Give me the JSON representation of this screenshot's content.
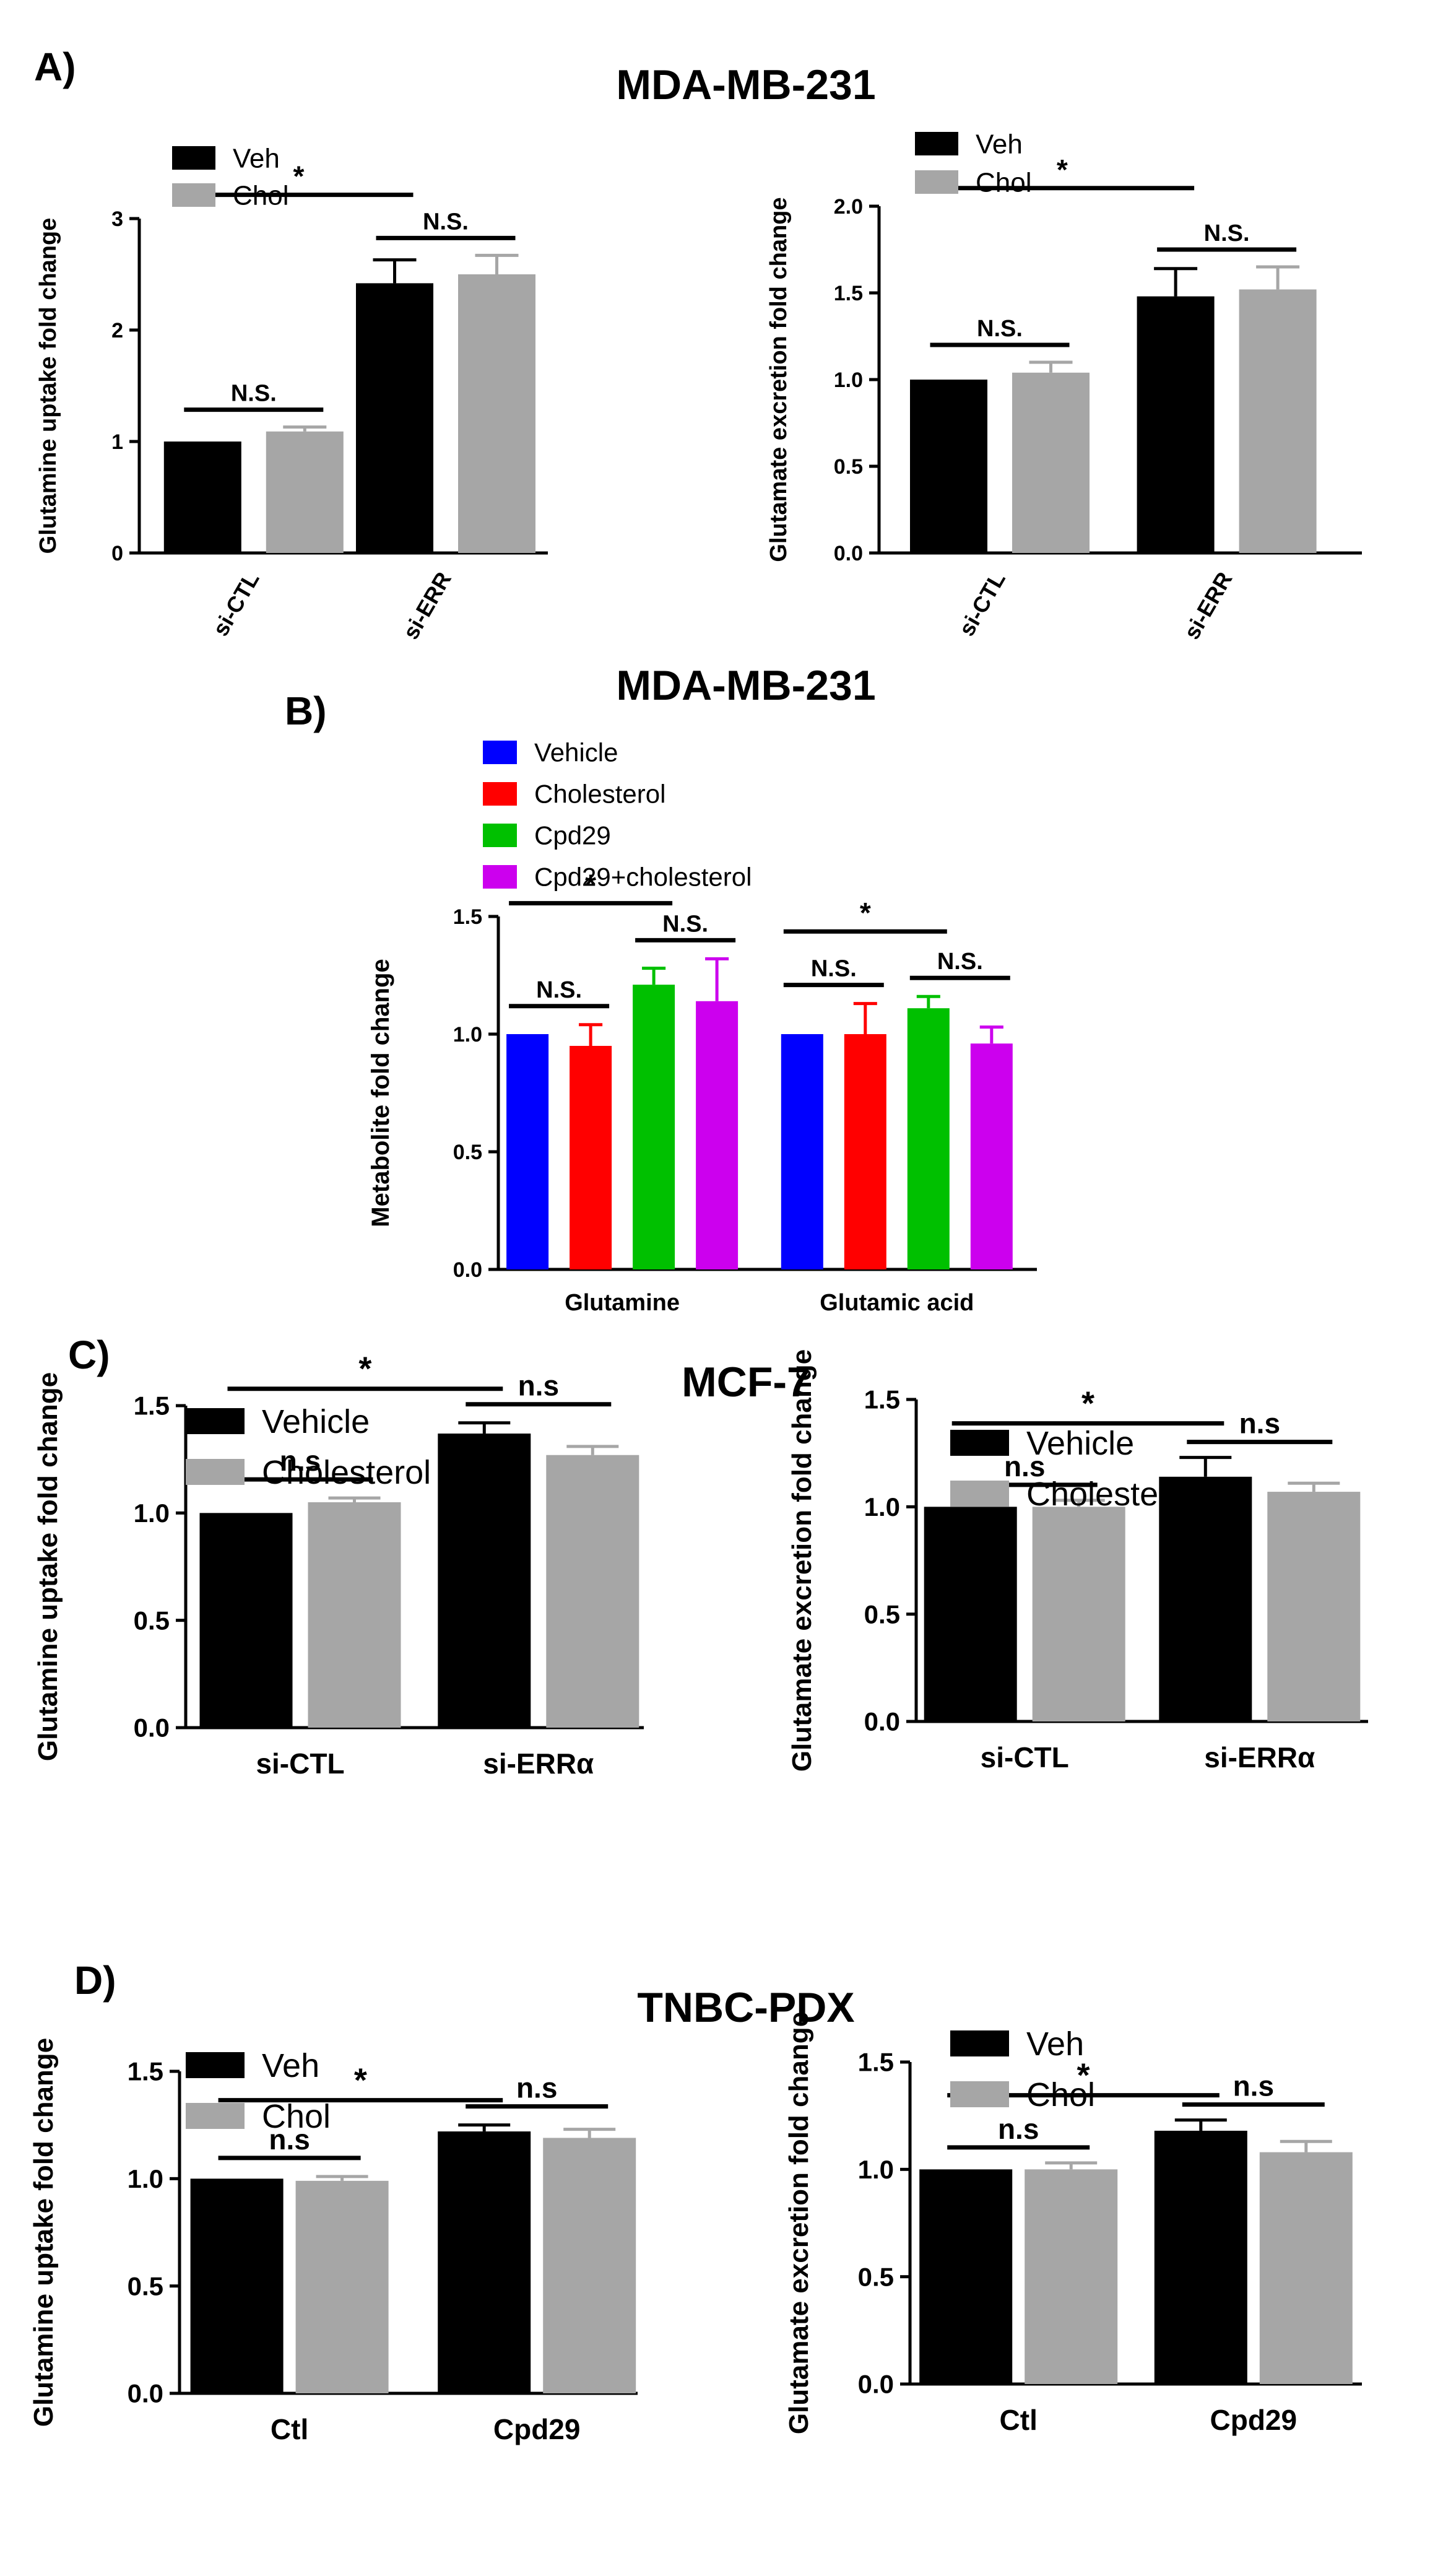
{
  "panel_labels": [
    "A)",
    "B)",
    "C)",
    "D)"
  ],
  "section_titles": [
    "MDA-MB-231",
    "MDA-MB-231",
    "MCF-7",
    "TNBC-PDX"
  ],
  "colors": {
    "black": "#000000",
    "gray": "#a6a6a6",
    "blue": "#0000ff",
    "red": "#ff0000",
    "green": "#00c000",
    "magenta": "#cc00ee"
  },
  "chart_data": [
    {
      "id": "A1",
      "type": "bar",
      "ylabel": "Glutamine uptake fold change",
      "ylim": [
        0,
        3
      ],
      "yticks": [
        "0",
        "1",
        "2",
        "3"
      ],
      "categories": [
        "si-CTL",
        "si-ERR"
      ],
      "rotated_categories": true,
      "series": [
        {
          "name": "Veh",
          "color": "#000000",
          "values": [
            1.0,
            2.42
          ],
          "errors": [
            0,
            0.21
          ]
        },
        {
          "name": "Chol",
          "color": "#a6a6a6",
          "values": [
            1.09,
            2.5
          ],
          "errors": [
            0.04,
            0.17
          ]
        }
      ],
      "annotations": [
        {
          "text": "N.S.",
          "between": [
            [
              0,
              0
            ],
            [
              0,
              1
            ]
          ]
        },
        {
          "text": "N.S.",
          "between": [
            [
              1,
              0
            ],
            [
              1,
              1
            ]
          ]
        },
        {
          "text": "*",
          "between": [
            [
              0,
              0
            ],
            [
              1,
              0
            ]
          ]
        }
      ]
    },
    {
      "id": "A2",
      "type": "bar",
      "ylabel": "Glutamate excretion fold change",
      "ylim": [
        0,
        2.0
      ],
      "yticks": [
        "0.0",
        "0.5",
        "1.0",
        "1.5",
        "2.0"
      ],
      "categories": [
        "si-CTL",
        "si-ERR"
      ],
      "rotated_categories": true,
      "series": [
        {
          "name": "Veh",
          "color": "#000000",
          "values": [
            1.0,
            1.48
          ],
          "errors": [
            0,
            0.16
          ]
        },
        {
          "name": "Chol",
          "color": "#a6a6a6",
          "values": [
            1.04,
            1.52
          ],
          "errors": [
            0.06,
            0.13
          ]
        }
      ],
      "annotations": [
        {
          "text": "N.S.",
          "between": [
            [
              0,
              0
            ],
            [
              0,
              1
            ]
          ]
        },
        {
          "text": "N.S.",
          "between": [
            [
              1,
              0
            ],
            [
              1,
              1
            ]
          ]
        },
        {
          "text": "*",
          "between": [
            [
              0,
              0
            ],
            [
              1,
              0
            ]
          ]
        }
      ]
    },
    {
      "id": "B",
      "type": "bar",
      "ylabel": "Metabolite fold change",
      "ylim": [
        0,
        1.5
      ],
      "yticks": [
        "0.0",
        "0.5",
        "1.0",
        "1.5"
      ],
      "categories": [
        "Glutamine",
        "Glutamic acid"
      ],
      "series": [
        {
          "name": "Vehicle",
          "color": "#0000ff",
          "values": [
            1.0,
            1.0
          ],
          "errors": [
            0,
            0
          ]
        },
        {
          "name": "Cholesterol",
          "color": "#ff0000",
          "values": [
            0.95,
            1.0
          ],
          "errors": [
            0.09,
            0.13
          ]
        },
        {
          "name": "Cpd29",
          "color": "#00c000",
          "values": [
            1.21,
            1.11
          ],
          "errors": [
            0.07,
            0.05
          ]
        },
        {
          "name": "Cpd29+cholesterol",
          "color": "#cc00ee",
          "values": [
            1.14,
            0.96
          ],
          "errors": [
            0.18,
            0.07
          ]
        }
      ],
      "annotations": [
        {
          "text": "N.S.",
          "between": [
            [
              0,
              0
            ],
            [
              0,
              1
            ]
          ]
        },
        {
          "text": "*",
          "between": [
            [
              0,
              0
            ],
            [
              0,
              2
            ]
          ]
        },
        {
          "text": "N.S.",
          "between": [
            [
              0,
              2
            ],
            [
              0,
              3
            ]
          ]
        },
        {
          "text": "N.S.",
          "between": [
            [
              1,
              0
            ],
            [
              1,
              1
            ]
          ]
        },
        {
          "text": "*",
          "between": [
            [
              1,
              0
            ],
            [
              1,
              2
            ]
          ]
        },
        {
          "text": "N.S.",
          "between": [
            [
              1,
              2
            ],
            [
              1,
              3
            ]
          ]
        }
      ]
    },
    {
      "id": "C1",
      "type": "bar",
      "ylabel": "Glutamine uptake fold change",
      "ylim": [
        0,
        1.5
      ],
      "yticks": [
        "0.0",
        "0.5",
        "1.0",
        "1.5"
      ],
      "categories": [
        "si-CTL",
        "si-ERRα"
      ],
      "series": [
        {
          "name": "Vehicle",
          "color": "#000000",
          "values": [
            1.0,
            1.37
          ],
          "errors": [
            0,
            0.05
          ]
        },
        {
          "name": "Cholesterol",
          "color": "#a6a6a6",
          "values": [
            1.05,
            1.27
          ],
          "errors": [
            0.02,
            0.04
          ]
        }
      ],
      "annotations": [
        {
          "text": "n.s",
          "between": [
            [
              0,
              0
            ],
            [
              0,
              1
            ]
          ]
        },
        {
          "text": "n.s",
          "between": [
            [
              1,
              0
            ],
            [
              1,
              1
            ]
          ]
        },
        {
          "text": "*",
          "between": [
            [
              0,
              0
            ],
            [
              1,
              0
            ]
          ]
        }
      ]
    },
    {
      "id": "C2",
      "type": "bar",
      "ylabel": "Glutamate excretion fold change",
      "ylim": [
        0,
        1.5
      ],
      "yticks": [
        "0.0",
        "0.5",
        "1.0",
        "1.5"
      ],
      "categories": [
        "si-CTL",
        "si-ERRα"
      ],
      "series": [
        {
          "name": "Vehicle",
          "color": "#000000",
          "values": [
            1.0,
            1.14
          ],
          "errors": [
            0,
            0.09
          ]
        },
        {
          "name": "Cholesterol",
          "color": "#a6a6a6",
          "values": [
            1.0,
            1.07
          ],
          "errors": [
            0.03,
            0.04
          ]
        }
      ],
      "annotations": [
        {
          "text": "n.s",
          "between": [
            [
              0,
              0
            ],
            [
              0,
              1
            ]
          ]
        },
        {
          "text": "n.s",
          "between": [
            [
              1,
              0
            ],
            [
              1,
              1
            ]
          ]
        },
        {
          "text": "*",
          "between": [
            [
              0,
              0
            ],
            [
              1,
              0
            ]
          ]
        }
      ]
    },
    {
      "id": "D1",
      "type": "bar",
      "ylabel": "Glutamine uptake fold change",
      "ylim": [
        0,
        1.5
      ],
      "yticks": [
        "0.0",
        "0.5",
        "1.0",
        "1.5"
      ],
      "categories": [
        "Ctl",
        "Cpd29"
      ],
      "series": [
        {
          "name": "Veh",
          "color": "#000000",
          "values": [
            1.0,
            1.22
          ],
          "errors": [
            0,
            0.03
          ]
        },
        {
          "name": "Chol",
          "color": "#a6a6a6",
          "values": [
            0.99,
            1.19
          ],
          "errors": [
            0.02,
            0.04
          ]
        }
      ],
      "annotations": [
        {
          "text": "n.s",
          "between": [
            [
              0,
              0
            ],
            [
              0,
              1
            ]
          ]
        },
        {
          "text": "n.s",
          "between": [
            [
              1,
              0
            ],
            [
              1,
              1
            ]
          ]
        },
        {
          "text": "*",
          "between": [
            [
              0,
              0
            ],
            [
              1,
              0
            ]
          ]
        }
      ]
    },
    {
      "id": "D2",
      "type": "bar",
      "ylabel": "Glutamate excretion fold change",
      "ylim": [
        0,
        1.5
      ],
      "yticks": [
        "0.0",
        "0.5",
        "1.0",
        "1.5"
      ],
      "categories": [
        "Ctl",
        "Cpd29"
      ],
      "series": [
        {
          "name": "Veh",
          "color": "#000000",
          "values": [
            1.0,
            1.18
          ],
          "errors": [
            0,
            0.05
          ]
        },
        {
          "name": "Chol",
          "color": "#a6a6a6",
          "values": [
            1.0,
            1.08
          ],
          "errors": [
            0.03,
            0.05
          ]
        }
      ],
      "annotations": [
        {
          "text": "n.s",
          "between": [
            [
              0,
              0
            ],
            [
              0,
              1
            ]
          ]
        },
        {
          "text": "n.s",
          "between": [
            [
              1,
              0
            ],
            [
              1,
              1
            ]
          ]
        },
        {
          "text": "*",
          "between": [
            [
              0,
              0
            ],
            [
              1,
              0
            ]
          ]
        }
      ]
    }
  ]
}
